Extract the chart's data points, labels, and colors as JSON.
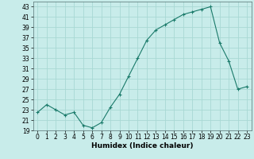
{
  "title": "",
  "xlabel": "Humidex (Indice chaleur)",
  "ylabel": "",
  "x": [
    0,
    1,
    2,
    3,
    4,
    5,
    6,
    7,
    8,
    9,
    10,
    11,
    12,
    13,
    14,
    15,
    16,
    17,
    18,
    19,
    20,
    21,
    22,
    23
  ],
  "y": [
    22.5,
    24.0,
    23.0,
    22.0,
    22.5,
    20.0,
    19.5,
    20.5,
    23.5,
    26.0,
    29.5,
    33.0,
    36.5,
    38.5,
    39.5,
    40.5,
    41.5,
    42.0,
    42.5,
    43.0,
    36.0,
    32.5,
    27.0,
    27.5
  ],
  "line_color": "#1a7a6a",
  "marker": "+",
  "marker_size": 3,
  "bg_color": "#c8ecea",
  "grid_color": "#a8d8d4",
  "ylim": [
    19,
    44
  ],
  "xlim": [
    -0.5,
    23.5
  ],
  "yticks": [
    19,
    21,
    23,
    25,
    27,
    29,
    31,
    33,
    35,
    37,
    39,
    41,
    43
  ],
  "xticks": [
    0,
    1,
    2,
    3,
    4,
    5,
    6,
    7,
    8,
    9,
    10,
    11,
    12,
    13,
    14,
    15,
    16,
    17,
    18,
    19,
    20,
    21,
    22,
    23
  ],
  "label_fontsize": 6.5,
  "tick_fontsize": 5.5
}
